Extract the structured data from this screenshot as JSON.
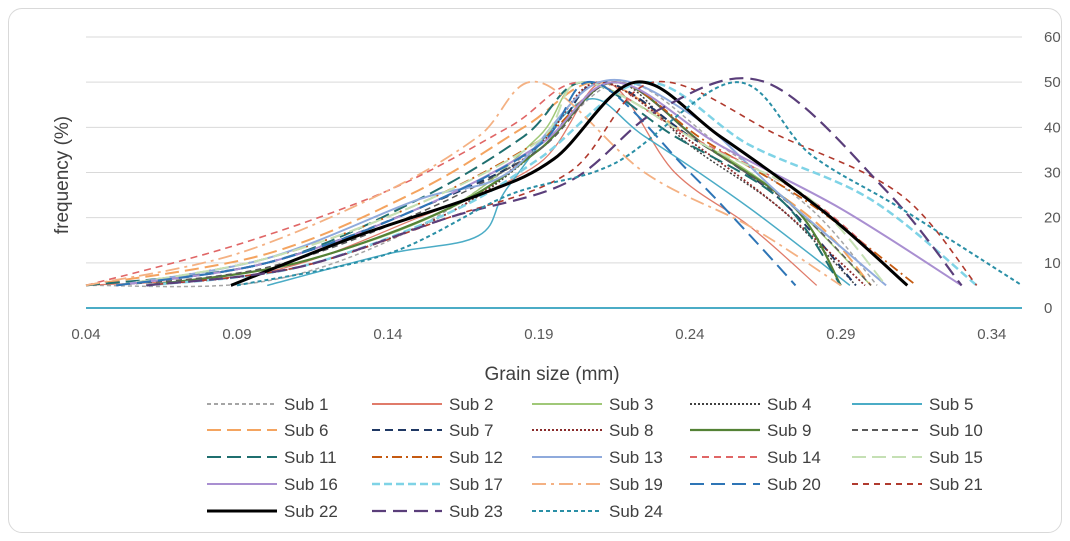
{
  "chart_data": {
    "type": "line",
    "title": "",
    "xlabel": "Grain size (mm)",
    "ylabel": "frequency (%)",
    "xlim": [
      0.04,
      0.35
    ],
    "ylim": [
      0,
      60
    ],
    "x_ticks": [
      "0.04",
      "0.09",
      "0.14",
      "0.19",
      "0.24",
      "0.29",
      "0.34"
    ],
    "y_ticks": [
      "0",
      "10",
      "20",
      "30",
      "40",
      "50",
      "60"
    ],
    "y_axis_side": "right",
    "grid": true,
    "legend_position": "bottom",
    "series": [
      {
        "name": "Sub 1",
        "color": "#a5a5a5",
        "dash": "4,3",
        "width": 1.5,
        "x": [
          0.04,
          0.1,
          0.15,
          0.19,
          0.218,
          0.25,
          0.28,
          0.302
        ],
        "y": [
          5,
          6,
          18,
          36,
          50,
          36,
          22,
          5
        ]
      },
      {
        "name": "Sub 2",
        "color": "#e07b6a",
        "dash": "",
        "width": 1.3,
        "x": [
          0.04,
          0.1,
          0.15,
          0.19,
          0.212,
          0.235,
          0.26,
          0.282
        ],
        "y": [
          5,
          8,
          20,
          32,
          50,
          30,
          18,
          5
        ]
      },
      {
        "name": "Sub 3",
        "color": "#a0c878",
        "dash": "",
        "width": 1.5,
        "x": [
          0.06,
          0.11,
          0.16,
          0.19,
          0.205,
          0.24,
          0.27,
          0.3
        ],
        "y": [
          5,
          10,
          22,
          38,
          50,
          38,
          25,
          5
        ]
      },
      {
        "name": "Sub 4",
        "color": "#404040",
        "dash": "2,2",
        "width": 1.5,
        "x": [
          0.06,
          0.11,
          0.16,
          0.19,
          0.215,
          0.24,
          0.27,
          0.295
        ],
        "y": [
          5,
          9,
          21,
          35,
          50,
          36,
          22,
          5
        ]
      },
      {
        "name": "Sub 5",
        "color": "#4bacc6",
        "dash": "",
        "width": 1.5,
        "x": [
          0.1,
          0.14,
          0.17,
          0.18,
          0.205,
          0.225,
          0.26,
          0.293
        ],
        "y": [
          5,
          12,
          16,
          27,
          46,
          38,
          22,
          5
        ]
      },
      {
        "name": "Sub 6",
        "color": "#f4a460",
        "dash": "14,6",
        "width": 2,
        "x": [
          0.04,
          0.1,
          0.15,
          0.185,
          0.21,
          0.24,
          0.28,
          0.3
        ],
        "y": [
          5,
          12,
          26,
          40,
          50,
          38,
          20,
          5
        ]
      },
      {
        "name": "Sub 7",
        "color": "#1f3864",
        "dash": "8,5",
        "width": 2,
        "x": [
          0.05,
          0.1,
          0.15,
          0.19,
          0.21,
          0.24,
          0.27,
          0.295
        ],
        "y": [
          5,
          10,
          22,
          35,
          50,
          38,
          24,
          5
        ]
      },
      {
        "name": "Sub 8",
        "color": "#8b2c2c",
        "dash": "2,2",
        "width": 1.8,
        "x": [
          0.06,
          0.11,
          0.16,
          0.19,
          0.21,
          0.24,
          0.27,
          0.298
        ],
        "y": [
          5,
          9,
          21,
          36,
          50,
          37,
          22,
          5
        ]
      },
      {
        "name": "Sub 9",
        "color": "#548235",
        "dash": "",
        "width": 2.2,
        "x": [
          0.06,
          0.11,
          0.16,
          0.19,
          0.215,
          0.245,
          0.275,
          0.29
        ],
        "y": [
          5,
          10,
          22,
          35,
          50,
          36,
          22,
          5
        ]
      },
      {
        "name": "Sub 10",
        "color": "#595959",
        "dash": "6,4",
        "width": 1.5,
        "x": [
          0.05,
          0.1,
          0.15,
          0.19,
          0.215,
          0.245,
          0.275,
          0.3
        ],
        "y": [
          5,
          9,
          21,
          35,
          50,
          36,
          22,
          5
        ]
      },
      {
        "name": "Sub 11",
        "color": "#1f6f6f",
        "dash": "14,6",
        "width": 2,
        "x": [
          0.04,
          0.1,
          0.15,
          0.185,
          0.205,
          0.235,
          0.27,
          0.29
        ],
        "y": [
          5,
          10,
          24,
          38,
          50,
          38,
          24,
          5
        ]
      },
      {
        "name": "Sub 12",
        "color": "#c55a11",
        "dash": "10,4,2,4",
        "width": 1.8,
        "x": [
          0.05,
          0.1,
          0.15,
          0.19,
          0.215,
          0.245,
          0.28,
          0.315
        ],
        "y": [
          5,
          11,
          23,
          37,
          50,
          37,
          23,
          5
        ]
      },
      {
        "name": "Sub 13",
        "color": "#8faadc",
        "dash": "",
        "width": 2,
        "x": [
          0.05,
          0.1,
          0.15,
          0.18,
          0.21,
          0.24,
          0.27,
          0.305
        ],
        "y": [
          5,
          11,
          24,
          30,
          50,
          43,
          25,
          5
        ]
      },
      {
        "name": "Sub 14",
        "color": "#e06666",
        "dash": "7,5",
        "width": 1.6,
        "x": [
          0.04,
          0.09,
          0.14,
          0.18,
          0.205,
          0.24,
          0.28,
          0.312
        ],
        "y": [
          5,
          14,
          26,
          40,
          50,
          38,
          24,
          5
        ]
      },
      {
        "name": "Sub 15",
        "color": "#c5e0b4",
        "dash": "14,6",
        "width": 2,
        "x": [
          0.05,
          0.1,
          0.15,
          0.19,
          0.205,
          0.245,
          0.28,
          0.305
        ],
        "y": [
          5,
          11,
          23,
          37,
          50,
          36,
          24,
          5
        ]
      },
      {
        "name": "Sub 16",
        "color": "#a98fd1",
        "dash": "",
        "width": 2,
        "x": [
          0.05,
          0.1,
          0.15,
          0.19,
          0.215,
          0.25,
          0.29,
          0.33
        ],
        "y": [
          5,
          10,
          22,
          36,
          50,
          36,
          22,
          5
        ]
      },
      {
        "name": "Sub 17",
        "color": "#7fd3e6",
        "dash": "8,4",
        "width": 2.5,
        "x": [
          0.06,
          0.11,
          0.16,
          0.19,
          0.225,
          0.26,
          0.3,
          0.335
        ],
        "y": [
          5,
          9,
          21,
          33,
          50,
          36,
          24,
          5
        ]
      },
      {
        "name": "Sub 19",
        "color": "#f4b183",
        "dash": "14,5,3,5",
        "width": 1.8,
        "x": [
          0.04,
          0.09,
          0.14,
          0.17,
          0.19,
          0.225,
          0.26,
          0.29
        ],
        "y": [
          5,
          12,
          26,
          38,
          50,
          30,
          18,
          5
        ]
      },
      {
        "name": "Sub 20",
        "color": "#2e75b6",
        "dash": "14,7",
        "width": 2,
        "x": [
          0.05,
          0.1,
          0.15,
          0.19,
          0.208,
          0.24,
          0.26,
          0.275
        ],
        "y": [
          5,
          10,
          22,
          36,
          50,
          30,
          16,
          5
        ]
      },
      {
        "name": "Sub 21",
        "color": "#b03a2e",
        "dash": "6,5",
        "width": 1.6,
        "x": [
          0.06,
          0.11,
          0.16,
          0.2,
          0.228,
          0.27,
          0.31,
          0.335
        ],
        "y": [
          5,
          9,
          20,
          30,
          50,
          38,
          25,
          5
        ]
      },
      {
        "name": "Sub 22",
        "color": "#000000",
        "dash": "",
        "width": 3,
        "x": [
          0.088,
          0.13,
          0.17,
          0.195,
          0.222,
          0.25,
          0.285,
          0.312
        ],
        "y": [
          5,
          16,
          25,
          33,
          50,
          38,
          21,
          5
        ]
      },
      {
        "name": "Sub 23",
        "color": "#5a3e7a",
        "dash": "14,7",
        "width": 2.2,
        "x": [
          0.06,
          0.11,
          0.16,
          0.2,
          0.23,
          0.265,
          0.305,
          0.33
        ],
        "y": [
          5,
          9,
          20,
          28,
          44,
          50,
          26,
          5
        ]
      },
      {
        "name": "Sub 24",
        "color": "#2a8fa6",
        "dash": "4,3",
        "width": 2,
        "x": [
          0.09,
          0.14,
          0.18,
          0.215,
          0.255,
          0.28,
          0.31,
          0.35
        ],
        "y": [
          5,
          12,
          25,
          32,
          50,
          34,
          22,
          5
        ]
      }
    ]
  }
}
